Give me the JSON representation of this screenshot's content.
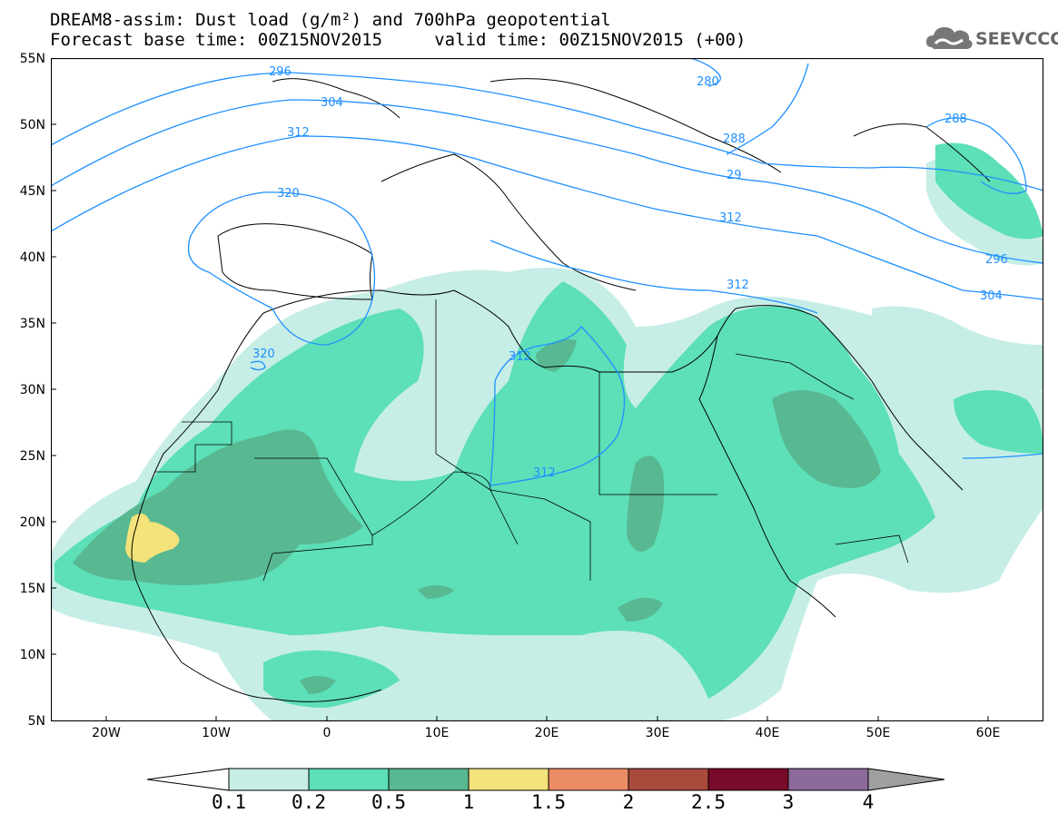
{
  "title": {
    "line1": "DREAM8-assim: Dust load (g/m²) and 700hPa geopotential",
    "line2": "Forecast base time: 00Z15NOV2015     valid time: 00Z15NOV2015 (+00)"
  },
  "logo": {
    "text": "SEEVCCC",
    "icon": "cloud-logo-icon"
  },
  "axes": {
    "lat_labels": [
      "55N",
      "50N",
      "45N",
      "40N",
      "35N",
      "30N",
      "25N",
      "20N",
      "15N",
      "10N",
      "5N"
    ],
    "lon_labels": [
      "20W",
      "10W",
      "0",
      "10E",
      "20E",
      "30E",
      "40E",
      "50E",
      "60E"
    ]
  },
  "contours": {
    "labels": [
      "296",
      "280",
      "304",
      "288",
      "312",
      "320",
      "29",
      "312",
      "296",
      "304",
      "288",
      "320",
      "312",
      "312",
      "312"
    ]
  },
  "colorbar": {
    "ticks": [
      "0.1",
      "0.2",
      "0.5",
      "1",
      "1.5",
      "2",
      "2.5",
      "3",
      "4"
    ],
    "colors": [
      "#c6eee6",
      "#5ddfb8",
      "#58b892",
      "#f4e27a",
      "#ea8c64",
      "#a84a3c",
      "#7a0a2a",
      "#8c6a9a"
    ],
    "under_color": "#ffffff",
    "over_color": "#a0a0a0"
  },
  "colors": {
    "contour_line": "#1e90ff",
    "coastline": "#000000"
  }
}
